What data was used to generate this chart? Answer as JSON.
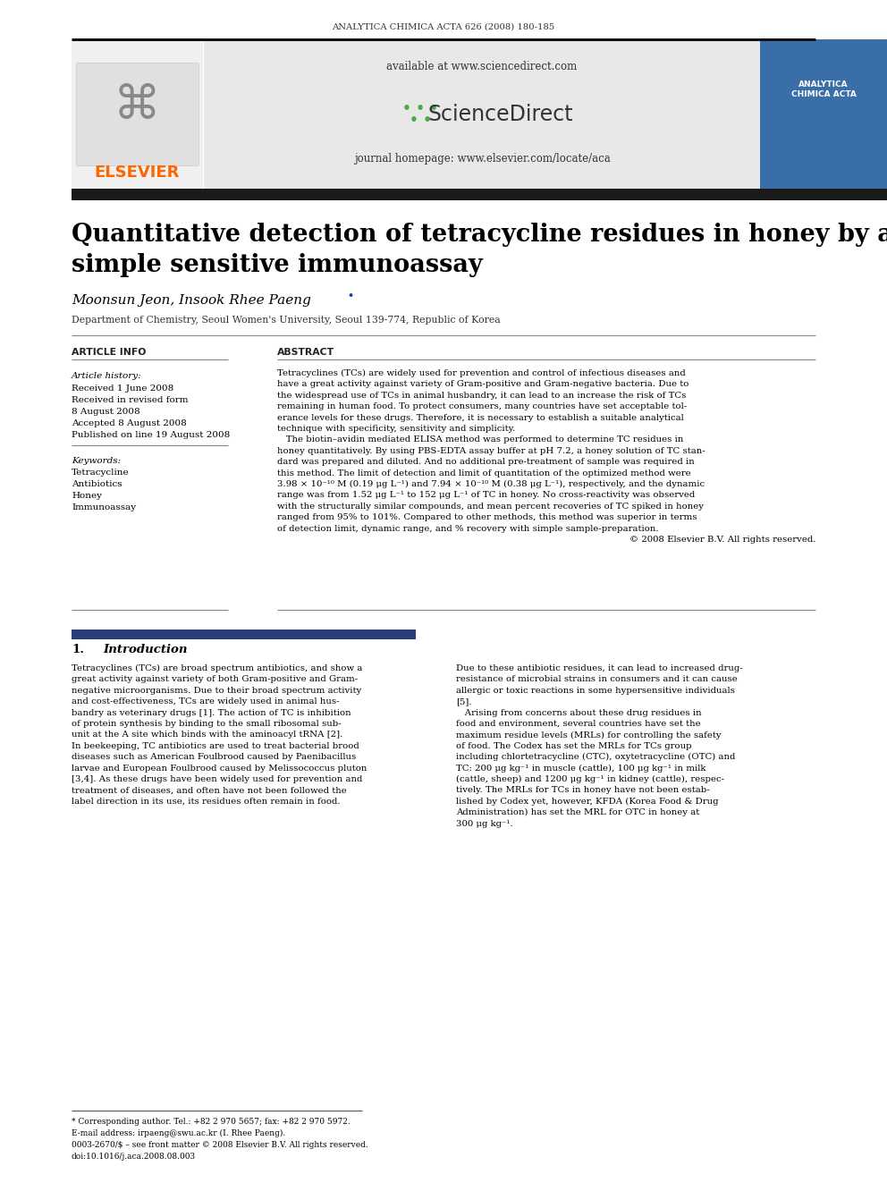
{
  "journal_header": "ANALYTICA CHIMICA ACTA 626 (2008) 180-185",
  "available_text": "available at www.sciencedirect.com",
  "journal_homepage": "journal homepage: www.elsevier.com/locate/aca",
  "title_line1": "Quantitative detection of tetracycline residues in honey by a",
  "title_line2": "simple sensitive immunoassay",
  "authors": "Moonsun Jeon, Insook Rhee Paeng",
  "affiliation": "Department of Chemistry, Seoul Women's University, Seoul 139-774, Republic of Korea",
  "article_info_label": "ARTICLE INFO",
  "abstract_label": "ABSTRACT",
  "article_history_label": "Article history:",
  "received1": "Received 1 June 2008",
  "received2": "Received in revised form",
  "received2b": "8 August 2008",
  "accepted": "Accepted 8 August 2008",
  "published": "Published on line 19 August 2008",
  "keywords_label": "Keywords:",
  "keywords": [
    "Tetracycline",
    "Antibiotics",
    "Honey",
    "Immunoassay"
  ],
  "abstract_lines": [
    "Tetracyclines (TCs) are widely used for prevention and control of infectious diseases and",
    "have a great activity against variety of Gram-positive and Gram-negative bacteria. Due to",
    "the widespread use of TCs in animal husbandry, it can lead to an increase the risk of TCs",
    "remaining in human food. To protect consumers, many countries have set acceptable tol-",
    "erance levels for these drugs. Therefore, it is necessary to establish a suitable analytical",
    "technique with specificity, sensitivity and simplicity.",
    "   The biotin–avidin mediated ELISA method was performed to determine TC residues in",
    "honey quantitatively. By using PBS-EDTA assay buffer at pH 7.2, a honey solution of TC stan-",
    "dard was prepared and diluted. And no additional pre-treatment of sample was required in",
    "this method. The limit of detection and limit of quantitation of the optimized method were",
    "3.98 × 10⁻¹⁰ M (0.19 μg L⁻¹) and 7.94 × 10⁻¹⁰ M (0.38 μg L⁻¹), respectively, and the dynamic",
    "range was from 1.52 μg L⁻¹ to 152 μg L⁻¹ of TC in honey. No cross-reactivity was observed",
    "with the structurally similar compounds, and mean percent recoveries of TC spiked in honey",
    "ranged from 95% to 101%. Compared to other methods, this method was superior in terms",
    "of detection limit, dynamic range, and % recovery with simple sample-preparation.",
    "© 2008 Elsevier B.V. All rights reserved."
  ],
  "intro_label_num": "1.",
  "intro_label_text": "Introduction",
  "intro_left_lines": [
    "Tetracyclines (TCs) are broad spectrum antibiotics, and show a",
    "great activity against variety of both Gram-positive and Gram-",
    "negative microorganisms. Due to their broad spectrum activity",
    "and cost-effectiveness, TCs are widely used in animal hus-",
    "bandry as veterinary drugs [1]. The action of TC is inhibition",
    "of protein synthesis by binding to the small ribosomal sub-",
    "unit at the A site which binds with the aminoacyl tRNA [2].",
    "In beekeeping, TC antibiotics are used to treat bacterial brood",
    "diseases such as American Foulbrood caused by Paenibacillus",
    "larvae and European Foulbrood caused by Melissococcus pluton",
    "[3,4]. As these drugs have been widely used for prevention and",
    "treatment of diseases, and often have not been followed the",
    "label direction in its use, its residues often remain in food."
  ],
  "intro_right_lines": [
    "Due to these antibiotic residues, it can lead to increased drug-",
    "resistance of microbial strains in consumers and it can cause",
    "allergic or toxic reactions in some hypersensitive individuals",
    "[5].",
    "   Arising from concerns about these drug residues in",
    "food and environment, several countries have set the",
    "maximum residue levels (MRLs) for controlling the safety",
    "of food. The Codex has set the MRLs for TCs group",
    "including chlortetracycline (CTC), oxytetracycline (OTC) and",
    "TC: 200 μg kg⁻¹ in muscle (cattle), 100 μg kg⁻¹ in milk",
    "(cattle, sheep) and 1200 μg kg⁻¹ in kidney (cattle), respec-",
    "tively. The MRLs for TCs in honey have not been estab-",
    "lished by Codex yet, however, KFDA (Korea Food & Drug",
    "Administration) has set the MRL for OTC in honey at",
    "300 μg kg⁻¹."
  ],
  "footnote_star": "* Corresponding author. Tel.: +82 2 970 5657; fax: +82 2 970 5972.",
  "footnote_email": "E-mail address: irpaeng@swu.ac.kr (I. Rhee Paeng).",
  "footnote_issn": "0003-2670/$ – see front matter © 2008 Elsevier B.V. All rights reserved.",
  "footnote_doi": "doi:10.1016/j.aca.2008.08.003",
  "bg_color": "#ffffff",
  "elsevier_color": "#ff6600",
  "intro_bar_color": "#2c3e7a",
  "dark_bar_color": "#1a1a1a",
  "gray_bg": "#e8e8e8",
  "right_logo_color": "#3a6ea8",
  "line_color": "#888888",
  "line_color_dark": "#111111"
}
